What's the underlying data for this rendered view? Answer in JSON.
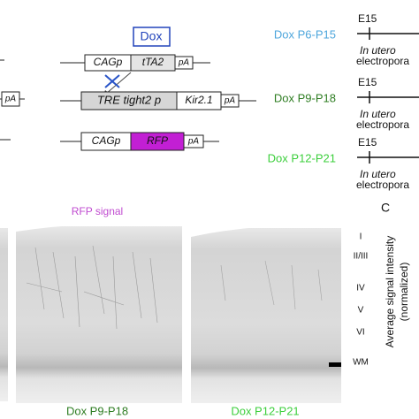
{
  "construct_panel": {
    "dox_box": "Dox",
    "left_partial": [
      "pA"
    ],
    "rows": [
      {
        "promoter": "CAGp",
        "gene": "tTA2",
        "polyA": "pA"
      },
      {
        "promoter": "TRE tight2 p",
        "gene": "Kir2.1",
        "polyA": "pA"
      },
      {
        "promoter": "CAGp",
        "gene": "RFP",
        "polyA": "pA"
      }
    ]
  },
  "timeline_panel": {
    "rows": [
      {
        "label": "Dox P6-P15",
        "color": "#4ea6dc",
        "stage": "E15",
        "method_line1": "In utero",
        "method_line2": "electropora"
      },
      {
        "label": "Dox P9-P18",
        "color": "#2e7d22",
        "stage": "E15",
        "method_line1": "In utero",
        "method_line2": "electropora"
      },
      {
        "label": "Dox P12-P21",
        "color": "#3ccf3c",
        "stage": "E15",
        "method_line1": "In utero",
        "method_line2": "electropora"
      }
    ]
  },
  "image_panel": {
    "title": "RFP signal",
    "layers": [
      "I",
      "II/III",
      "IV",
      "V",
      "VI",
      "WM"
    ],
    "captions": [
      {
        "text": "Dox P9-P18",
        "color": "#2e7d22"
      },
      {
        "text": "Dox P12-P21",
        "color": "#3ccf3c"
      }
    ]
  },
  "panel_c": {
    "letter": "C",
    "y_label_line1": "Average signal intensity",
    "y_label_line2": "(normalized)"
  }
}
